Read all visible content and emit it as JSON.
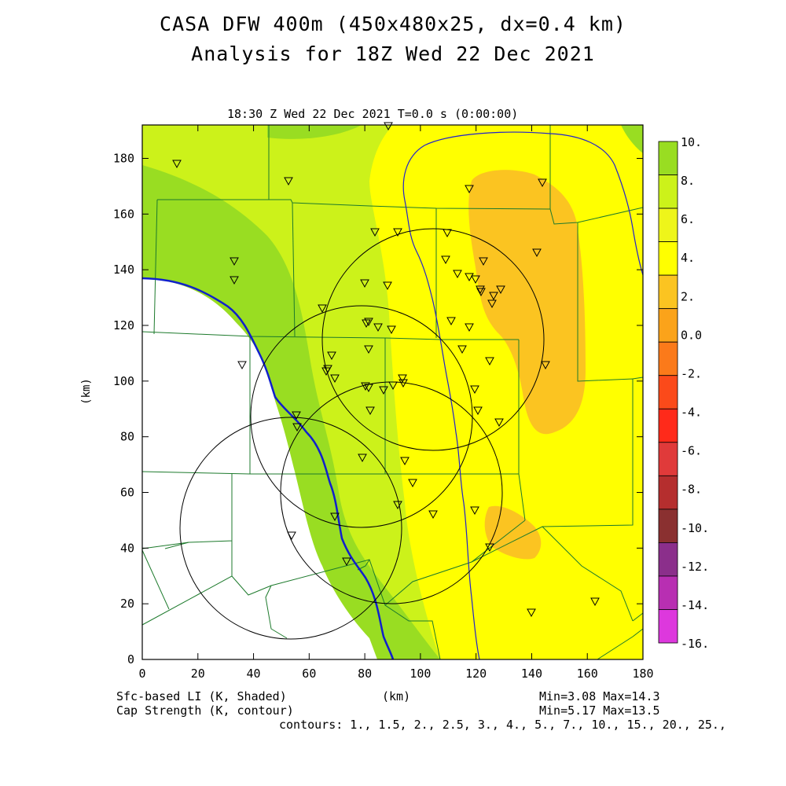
{
  "title": {
    "line1": "CASA DFW 400m (450x480x25, dx=0.4 km)",
    "line2": "Analysis for 18Z Wed 22 Dec 2021"
  },
  "panel": {
    "time_label": "18:30 Z Wed 22 Dec 2021   T=0.0 s (0:00:00)"
  },
  "axes": {
    "x_label": "(km)",
    "y_label": "(km)",
    "x_ticks": [
      "0",
      "20",
      "40",
      "60",
      "80",
      "100",
      "120",
      "140",
      "160",
      "180"
    ],
    "y_ticks": [
      "0",
      "20",
      "40",
      "60",
      "80",
      "100",
      "120",
      "140",
      "160",
      "180"
    ]
  },
  "colorbar": {
    "labels": [
      "10.",
      "8.",
      "6.",
      "4.",
      "2.",
      "0.0",
      "-2.",
      "-4.",
      "-6.",
      "-8.",
      "-10.",
      "-12.",
      "-14.",
      "-16."
    ],
    "colors": [
      "#99dd22",
      "#ccf21a",
      "#eef51a",
      "#ffff00",
      "#fbc421",
      "#fba31a",
      "#fb7a1a",
      "#fb4a1a",
      "#ff2a1a",
      "#e03a3a",
      "#b52e2e",
      "#8a3030",
      "#8b2f8b",
      "#b82fb2",
      "#dd38dd"
    ]
  },
  "footer": {
    "left1": "Sfc-based LI (K, Shaded)",
    "left2": "Cap Strength (K, contour)",
    "center": "(km)",
    "right1": "Min=3.08 Max=14.3",
    "right2": "Min=5.17 Max=13.5",
    "contours": "contours: 1., 1.5, 2., 2.5, 3., 4., 5., 7., 10., 15., 20., 25.,"
  }
}
